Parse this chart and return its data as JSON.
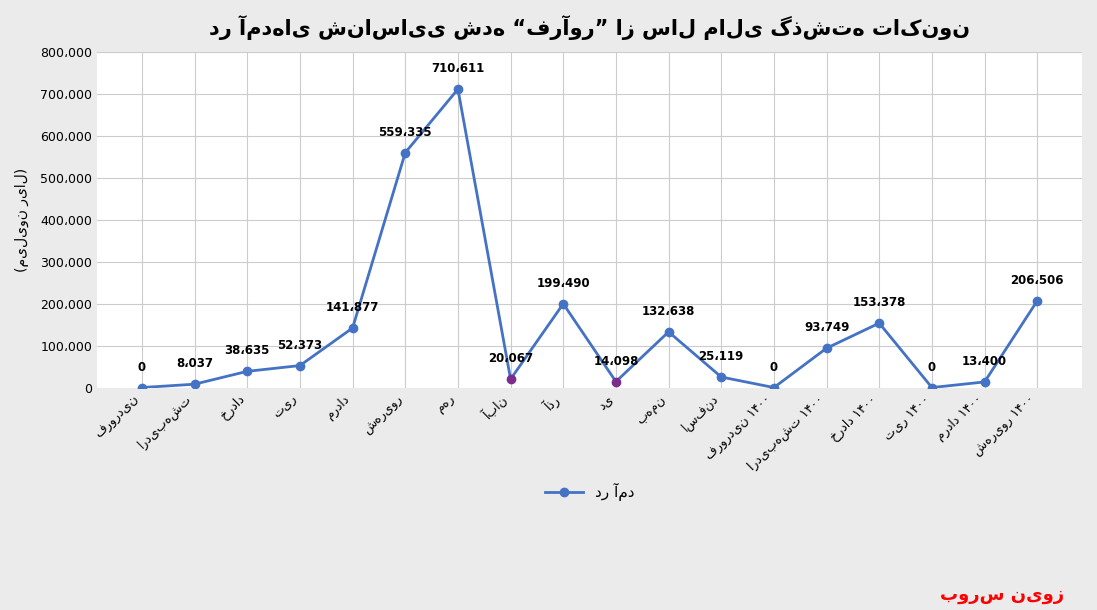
{
  "title": "در آمدهای شناسایی شده “فرآور” از سال مالی گذشته تاکنون",
  "ylabel": "(میلیون ریال)",
  "legend_label": "در آمد",
  "watermark": "بورس نیوز",
  "categories": [
    "فروردین",
    "اردیبهشت",
    "خرداد",
    "تیر",
    "مرداد",
    "شهریور",
    "مهر",
    "آبان",
    "آذر",
    "دی",
    "بهمن",
    "اسفند",
    "فروردین ۱۴۰۰",
    "اردیبهشت ۱۴۰۰",
    "خرداد ۱۴۰۰",
    "تیر ۱۴۰۰",
    "مرداد ۱۴۰۰",
    "شهریور ۱۴۰۰"
  ],
  "values": [
    0,
    8037,
    38635,
    52373,
    141877,
    559335,
    710611,
    20067,
    199490,
    14098,
    132638,
    25119,
    0,
    93749,
    153378,
    0,
    13400,
    206506
  ],
  "data_labels": [
    "0",
    "8،037",
    "38،635",
    "52،373",
    "141،877",
    "559،335",
    "710،611",
    "20،067",
    "199،490",
    "14،098",
    "132،638",
    "25،119",
    "0",
    "93،749",
    "153،378",
    "0",
    "13،400",
    "206،506"
  ],
  "line_color": "#4472C4",
  "marker_color": "#4472C4",
  "special_marker_indices": [
    7,
    9
  ],
  "special_marker_color": "#7B2D8B",
  "background_color": "#EBEBEB",
  "plot_bg_color": "#FFFFFF",
  "grid_color": "#CCCCCC",
  "title_fontsize": 15,
  "label_fontsize": 8.5,
  "tick_fontsize": 9,
  "ylim": [
    0,
    800000
  ],
  "yticks": [
    0,
    100000,
    200000,
    300000,
    400000,
    500000,
    600000,
    700000,
    800000
  ],
  "ytick_labels": [
    "0",
    "100،000",
    "200،000",
    "300،000",
    "400،000",
    "500،000",
    "600،000",
    "700،000",
    "800،000"
  ]
}
